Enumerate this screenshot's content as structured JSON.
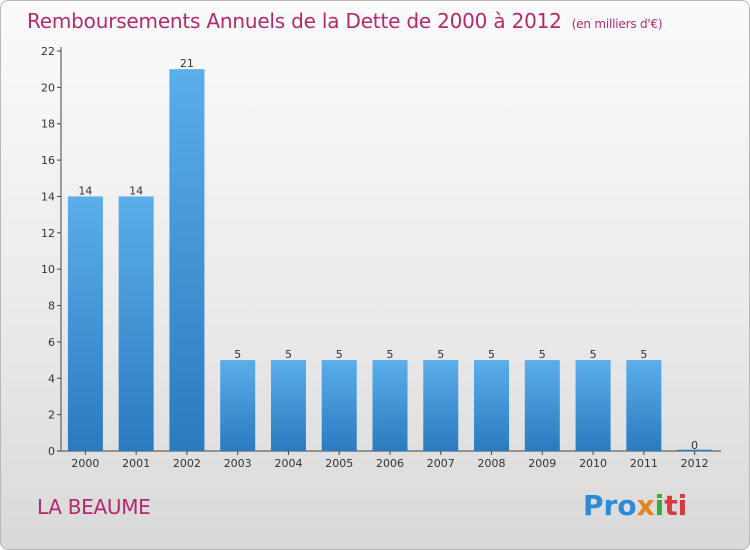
{
  "header": {
    "title": "Remboursements Annuels de la Dette de 2000 à 2012",
    "unit": "(en milliers d'€)"
  },
  "footer": {
    "place": "LA BEAUME",
    "logo_parts": [
      "Pro",
      "x",
      "i",
      "ti"
    ]
  },
  "colors": {
    "title": "#b5286d",
    "bar_top": "#5aaeea",
    "bar_bottom": "#2b7ac0"
  },
  "chart_data": {
    "type": "bar",
    "title": "Remboursements Annuels de la Dette de 2000 à 2012",
    "xlabel": "",
    "ylabel": "",
    "ylim": [
      0,
      22
    ],
    "yticks": [
      0,
      2,
      4,
      6,
      8,
      10,
      12,
      14,
      16,
      18,
      20,
      22
    ],
    "categories": [
      "2000",
      "2001",
      "2002",
      "2003",
      "2004",
      "2005",
      "2006",
      "2007",
      "2008",
      "2009",
      "2010",
      "2011",
      "2012"
    ],
    "values": [
      14,
      14,
      21,
      5,
      5,
      5,
      5,
      5,
      5,
      5,
      5,
      5,
      0
    ],
    "grid": false,
    "legend": "none"
  }
}
